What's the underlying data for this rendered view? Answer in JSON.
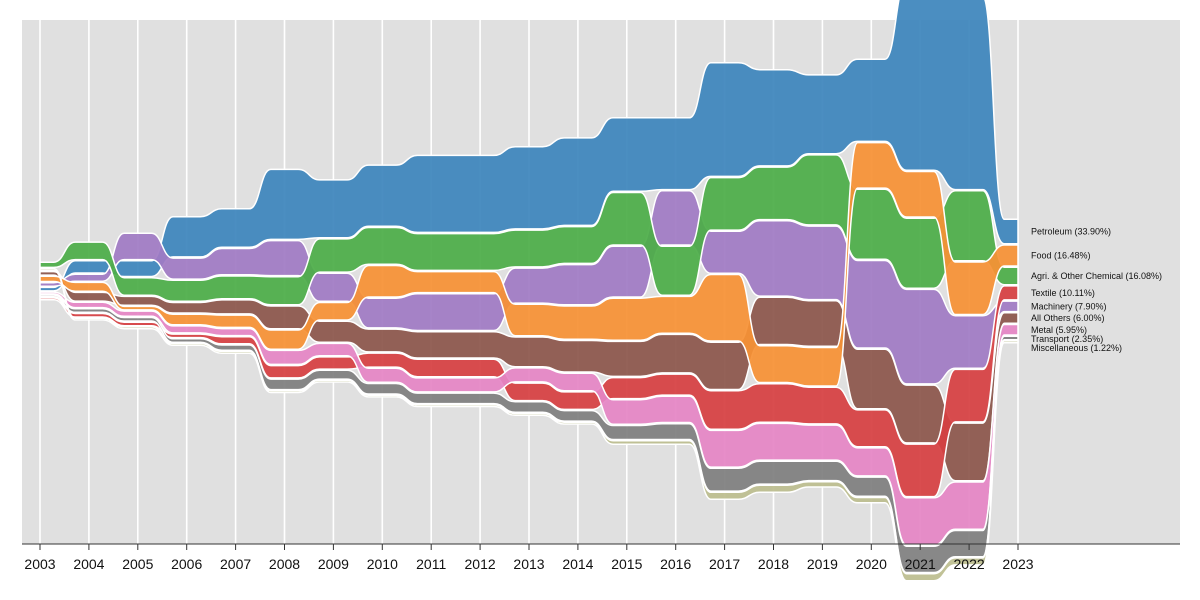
{
  "chart_data": {
    "type": "area",
    "subtype": "bump-streamgraph",
    "x": [
      "2003",
      "2004",
      "2005",
      "2006",
      "2007",
      "2008",
      "2009",
      "2010",
      "2011",
      "2012",
      "2013",
      "2014",
      "2015",
      "2016",
      "2017",
      "2018",
      "2019",
      "2020",
      "2021",
      "2022",
      "2023"
    ],
    "grid": true,
    "legend": "right-end-labels",
    "colors": {
      "background": "#e0e0e0",
      "gridline": "#ffffff"
    },
    "series": [
      {
        "name": "Petroleum (33.90%)",
        "color": "#3d85bc",
        "values": [
          2,
          7,
          9,
          23,
          22,
          40,
          33,
          35,
          44,
          44,
          47,
          50,
          42,
          41,
          65,
          55,
          45,
          47,
          108,
          110,
          14
        ],
        "ranks": [
          6,
          2,
          2,
          1,
          1,
          1,
          1,
          1,
          1,
          1,
          1,
          1,
          1,
          1,
          1,
          1,
          1,
          1,
          1,
          1,
          1
        ]
      },
      {
        "name": "Food (16.48%)",
        "color": "#f69135",
        "values": [
          3,
          5,
          2,
          6,
          7,
          11,
          10,
          18,
          12,
          12,
          18,
          19,
          24,
          21,
          38,
          21,
          22,
          26,
          26,
          30,
          12
        ],
        "ranks": [
          4,
          4,
          5,
          5,
          5,
          5,
          4,
          3,
          3,
          3,
          4,
          4,
          4,
          4,
          4,
          5,
          5,
          2,
          2,
          3,
          2
        ]
      },
      {
        "name": "Agri. & Other Chemical (16.08%)",
        "color": "#4cad48",
        "values": [
          3,
          10,
          10,
          12,
          13,
          16,
          19,
          21,
          21,
          21,
          21,
          21,
          30,
          28,
          30,
          30,
          40,
          40,
          40,
          40,
          10
        ],
        "ranks": [
          1,
          1,
          3,
          3,
          3,
          3,
          2,
          2,
          2,
          2,
          2,
          2,
          2,
          3,
          2,
          2,
          2,
          3,
          3,
          2,
          3
        ]
      },
      {
        "name": "Textile (10.11%)",
        "color": "#d64042",
        "values": [
          1,
          2,
          2,
          2,
          4,
          7,
          7,
          8,
          10,
          10,
          10,
          10,
          12,
          12,
          22,
          22,
          21,
          21,
          30,
          30,
          8
        ],
        "ranks": [
          9,
          8,
          8,
          7,
          7,
          7,
          7,
          6,
          6,
          6,
          7,
          7,
          6,
          6,
          6,
          6,
          6,
          6,
          6,
          5,
          4
        ]
      },
      {
        "name": "Machinery (7.90%)",
        "color": "#a07bc4",
        "values": [
          2,
          4,
          15,
          12,
          15,
          20,
          16,
          17,
          21,
          21,
          20,
          23,
          29,
          31,
          24,
          43,
          42,
          50,
          54,
          30,
          6
        ],
        "ranks": [
          5,
          3,
          1,
          2,
          2,
          2,
          3,
          4,
          4,
          4,
          3,
          3,
          3,
          2,
          3,
          3,
          3,
          4,
          4,
          4,
          5
        ]
      },
      {
        "name": "All Others (6.00%)",
        "color": "#8c564b",
        "values": [
          2,
          5,
          5,
          6,
          8,
          13,
          12,
          13,
          15,
          15,
          17,
          18,
          20,
          22,
          27,
          27,
          26,
          34,
          33,
          33,
          6
        ],
        "ranks": [
          3,
          5,
          4,
          4,
          4,
          4,
          5,
          5,
          5,
          5,
          5,
          5,
          5,
          5,
          5,
          4,
          4,
          5,
          5,
          6,
          6
        ]
      },
      {
        "name": "Metal (5.95%)",
        "color": "#e585c5",
        "values": [
          1,
          3,
          3,
          4,
          4,
          8,
          7,
          8,
          8,
          8,
          8,
          10,
          14,
          15,
          21,
          21,
          20,
          16,
          27,
          27,
          6
        ],
        "ranks": [
          7,
          6,
          6,
          6,
          6,
          6,
          6,
          7,
          7,
          7,
          6,
          6,
          7,
          7,
          7,
          7,
          7,
          7,
          7,
          7,
          7
        ]
      },
      {
        "name": "Transport (2.35%)",
        "color": "#7f7f7f",
        "values": [
          1,
          2,
          2,
          2,
          3,
          6,
          5,
          6,
          6,
          6,
          6,
          6,
          8,
          9,
          13,
          13,
          11,
          11,
          15,
          15,
          2
        ],
        "ranks": [
          8,
          7,
          7,
          8,
          8,
          8,
          8,
          8,
          8,
          8,
          8,
          8,
          8,
          8,
          8,
          8,
          8,
          8,
          8,
          8,
          8
        ]
      },
      {
        "name": "Miscellaneous (1.22%)",
        "color": "#bcbd8f",
        "values": [
          1,
          1,
          1,
          1,
          1,
          1,
          1,
          1,
          1,
          1,
          1,
          1,
          2,
          2,
          4,
          4,
          3,
          3,
          4,
          4,
          1
        ],
        "ranks": [
          2,
          9,
          9,
          9,
          9,
          9,
          9,
          9,
          9,
          9,
          9,
          9,
          9,
          9,
          9,
          9,
          9,
          9,
          9,
          9,
          9
        ]
      }
    ]
  }
}
